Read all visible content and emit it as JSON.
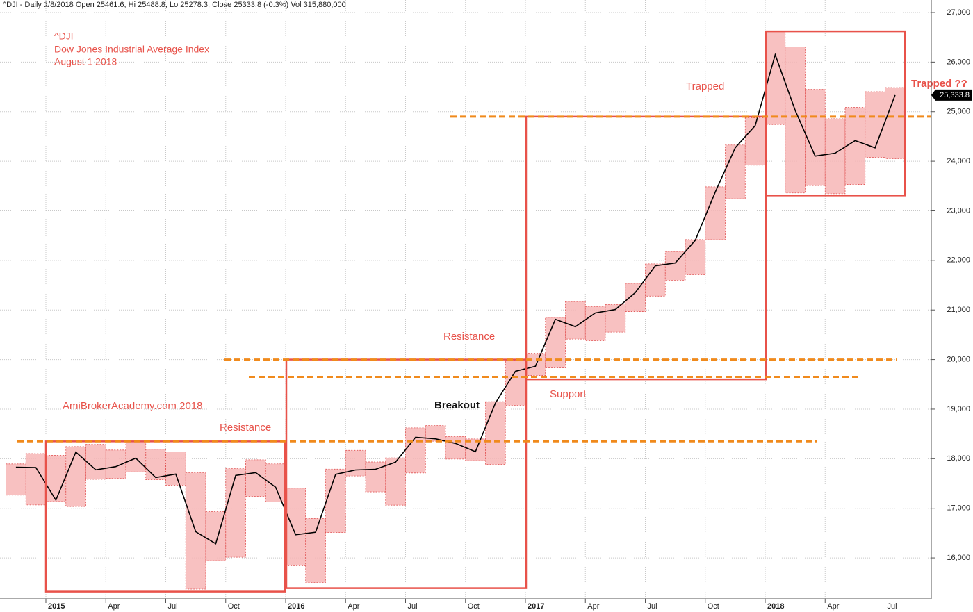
{
  "chart_data": {
    "type": "range",
    "header": "^DJI - Daily 1/8/2018 Open 25461.6, Hi 25488.8, Lo 25278.3, Close 25333.8 (-0.3%) Vol 315,880,000",
    "title_lines": [
      "^DJI",
      "Dow Jones Industrial Average Index",
      "August 1 2018"
    ],
    "watermark": "AmiBrokerAcademy.com   2018",
    "categories": [
      null,
      null,
      "2015",
      null,
      null,
      "Apr",
      null,
      null,
      "Jul",
      null,
      null,
      "Oct",
      null,
      null,
      "2016",
      null,
      null,
      "Apr",
      null,
      null,
      "Jul",
      null,
      null,
      "Oct",
      null,
      null,
      "2017",
      null,
      null,
      "Apr",
      null,
      null,
      "Jul",
      null,
      null,
      "Oct",
      null,
      null,
      "2018",
      null,
      null,
      "Apr",
      null,
      null,
      "Jul"
    ],
    "high": [
      17895,
      18103,
      18069,
      18244,
      18289,
      18175,
      18351,
      18190,
      18138,
      17716,
      16933,
      17800,
      17978,
      17896,
      17405,
      16795,
      17790,
      18168,
      17934,
      18017,
      18623,
      18668,
      18450,
      18399,
      19152,
      19987,
      20125,
      20851,
      21169,
      21070,
      21112,
      21535,
      21929,
      22179,
      22420,
      23485,
      24327,
      24876,
      26617,
      26306,
      25450,
      24858,
      25087,
      25403,
      25486
    ],
    "low": [
      17265,
      17067,
      17136,
      17037,
      17585,
      17602,
      17734,
      17575,
      17465,
      15370,
      15942,
      16013,
      17238,
      17128,
      15842,
      15503,
      16511,
      17652,
      17331,
      17063,
      17713,
      18353,
      17992,
      17960,
      17884,
      19076,
      19678,
      19831,
      20413,
      20379,
      20553,
      20967,
      21279,
      21600,
      21710,
      22417,
      23242,
      23921,
      24741,
      23360,
      23509,
      23345,
      23531,
      24077,
      24050
    ],
    "close": [
      17828,
      17823,
      17165,
      18133,
      17776,
      17841,
      18011,
      17620,
      17690,
      16528,
      16285,
      17664,
      17720,
      17425,
      16466,
      16517,
      17685,
      17774,
      17787,
      17930,
      18432,
      18401,
      18308,
      18142,
      19124,
      19763,
      19864,
      20812,
      20663,
      20940,
      21009,
      21350,
      21891,
      21948,
      22405,
      23377,
      24272,
      24719,
      26149,
      25029,
      24103,
      24163,
      24416,
      24271,
      25334
    ],
    "box_color": "#f7b6b6",
    "line_color": "#000000",
    "last_price": {
      "value": 25333.8,
      "label": "25,333.8"
    },
    "levels": [
      {
        "value": 18351,
        "label": "Resistance"
      },
      {
        "value": 20000,
        "label": "Resistance"
      },
      {
        "value": 19650,
        "label": "Support"
      },
      {
        "value": 24900,
        "label": "Trapped"
      }
    ],
    "level_color": "#f08a1c",
    "zones": [
      {
        "low": 15320,
        "high": 18350
      },
      {
        "low": 15390,
        "high": 20000,
        "label": "Breakout"
      },
      {
        "low": 19600,
        "high": 24900
      },
      {
        "low": 23310,
        "high": 26620,
        "label": "Trapped ??"
      }
    ],
    "zone_color": "#e8524a",
    "ylim": [
      14908,
      27252
    ],
    "yticks": [
      {
        "value": 16000,
        "label": "16,000"
      },
      {
        "value": 17000,
        "label": "17,000"
      },
      {
        "value": 18000,
        "label": "18,000"
      },
      {
        "value": 19000,
        "label": "19,000"
      },
      {
        "value": 20000,
        "label": "20,000"
      },
      {
        "value": 21000,
        "label": "21,000"
      },
      {
        "value": 22000,
        "label": "22,000"
      },
      {
        "value": 23000,
        "label": "23,000"
      },
      {
        "value": 24000,
        "label": "24,000"
      },
      {
        "value": 25000,
        "label": "25,000"
      },
      {
        "value": 26000,
        "label": "26,000"
      },
      {
        "value": 27000,
        "label": "27,000"
      }
    ],
    "grid": true
  }
}
